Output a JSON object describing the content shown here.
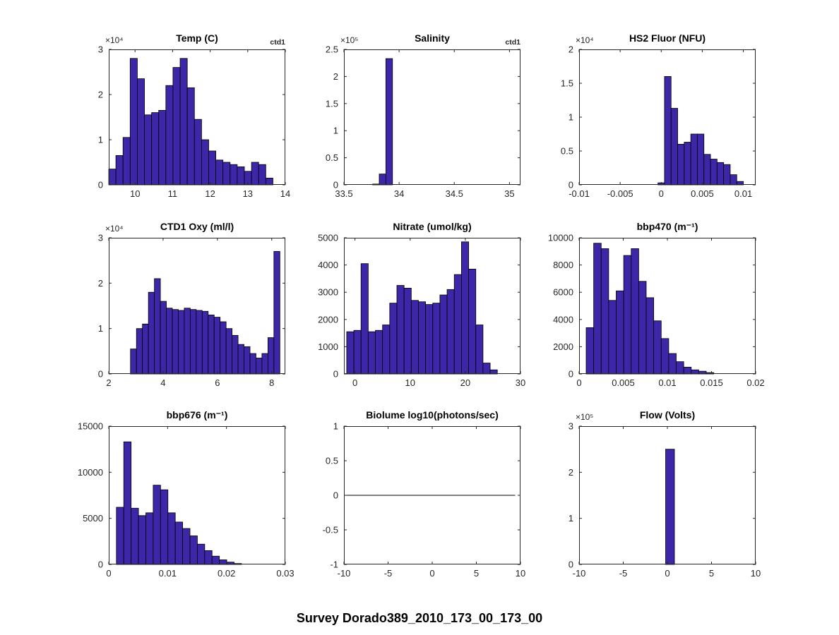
{
  "figure": {
    "title": "Survey Dorado389_2010_173_00_173_00",
    "background": "#ffffff",
    "bar_color": "#3E26A8",
    "bar_edge_color": "#000000",
    "axis_color": "#262626",
    "tick_label_color": "#262626"
  },
  "chart_data": [
    {
      "type": "bar",
      "title": "Temp (C)",
      "corner_label": "ctd1",
      "y_exponent": "×10⁴",
      "xlim": [
        9.3,
        14
      ],
      "ylim": [
        0,
        3
      ],
      "xticks": [
        {
          "v": 10,
          "label": "10"
        },
        {
          "v": 11,
          "label": "11"
        },
        {
          "v": 12,
          "label": "12"
        },
        {
          "v": 13,
          "label": "13"
        },
        {
          "v": 14,
          "label": "14"
        }
      ],
      "yticks": [
        {
          "v": 0,
          "label": "0"
        },
        {
          "v": 1,
          "label": "1"
        },
        {
          "v": 2,
          "label": "2"
        },
        {
          "v": 3,
          "label": "3"
        }
      ],
      "bins": {
        "start": 9.3,
        "width": 0.19,
        "values": [
          0.35,
          0.65,
          1.05,
          2.8,
          2.35,
          1.55,
          1.6,
          1.65,
          2.2,
          2.6,
          2.8,
          2.15,
          1.45,
          1.0,
          0.75,
          0.55,
          0.5,
          0.45,
          0.4,
          0.3,
          0.5,
          0.45,
          0.15
        ]
      }
    },
    {
      "type": "bar",
      "title": "Salinity",
      "corner_label": "ctd1",
      "y_exponent": "×10⁵",
      "xlim": [
        33.5,
        35.1
      ],
      "ylim": [
        0,
        2.5
      ],
      "xticks": [
        {
          "v": 33.5,
          "label": "33.5"
        },
        {
          "v": 34,
          "label": "34"
        },
        {
          "v": 34.5,
          "label": "34.5"
        },
        {
          "v": 35,
          "label": "35"
        }
      ],
      "yticks": [
        {
          "v": 0,
          "label": "0"
        },
        {
          "v": 0.5,
          "label": "0.5"
        },
        {
          "v": 1,
          "label": "1"
        },
        {
          "v": 1.5,
          "label": "1.5"
        },
        {
          "v": 2,
          "label": "2"
        },
        {
          "v": 2.5,
          "label": "2.5"
        }
      ],
      "bins": {
        "start": 33.76,
        "width": 0.06,
        "values": [
          0.015,
          0.2,
          2.33
        ]
      }
    },
    {
      "type": "bar",
      "title": "HS2 Fluor (NFU)",
      "y_exponent": "×10⁴",
      "xlim": [
        -0.01,
        0.0115
      ],
      "ylim": [
        0,
        2
      ],
      "xticks": [
        {
          "v": -0.01,
          "label": "-0.01"
        },
        {
          "v": -0.005,
          "label": "-0.005"
        },
        {
          "v": 0,
          "label": "0"
        },
        {
          "v": 0.005,
          "label": "0.005"
        },
        {
          "v": 0.01,
          "label": "0.01"
        }
      ],
      "yticks": [
        {
          "v": 0,
          "label": "0"
        },
        {
          "v": 0.5,
          "label": "0.5"
        },
        {
          "v": 1,
          "label": "1"
        },
        {
          "v": 1.5,
          "label": "1.5"
        },
        {
          "v": 2,
          "label": "2"
        }
      ],
      "bins": {
        "start": -0.0004,
        "width": 0.0008,
        "values": [
          0.03,
          1.6,
          1.13,
          0.6,
          0.63,
          0.75,
          0.75,
          0.45,
          0.38,
          0.33,
          0.3,
          0.15,
          0.05
        ]
      }
    },
    {
      "type": "bar",
      "title": "CTD1 Oxy (ml/l)",
      "y_exponent": "×10⁴",
      "xlim": [
        2,
        8.5
      ],
      "ylim": [
        0,
        3
      ],
      "xticks": [
        {
          "v": 2,
          "label": "2"
        },
        {
          "v": 4,
          "label": "4"
        },
        {
          "v": 6,
          "label": "6"
        },
        {
          "v": 8,
          "label": "8"
        }
      ],
      "yticks": [
        {
          "v": 0,
          "label": "0"
        },
        {
          "v": 1,
          "label": "1"
        },
        {
          "v": 2,
          "label": "2"
        },
        {
          "v": 3,
          "label": "3"
        }
      ],
      "bins": {
        "start": 2.8,
        "width": 0.22,
        "values": [
          0.55,
          1.0,
          1.1,
          1.8,
          2.1,
          1.6,
          1.45,
          1.42,
          1.4,
          1.45,
          1.42,
          1.4,
          1.38,
          1.3,
          1.25,
          1.15,
          1.0,
          0.85,
          0.65,
          0.6,
          0.45,
          0.35,
          0.45,
          0.8,
          2.7
        ]
      }
    },
    {
      "type": "bar",
      "title": "Nitrate (umol/kg)",
      "xlim": [
        -2,
        30
      ],
      "ylim": [
        0,
        5000
      ],
      "xticks": [
        {
          "v": 0,
          "label": "0"
        },
        {
          "v": 10,
          "label": "10"
        },
        {
          "v": 20,
          "label": "20"
        },
        {
          "v": 30,
          "label": "30"
        }
      ],
      "yticks": [
        {
          "v": 0,
          "label": "0"
        },
        {
          "v": 1000,
          "label": "1000"
        },
        {
          "v": 2000,
          "label": "2000"
        },
        {
          "v": 3000,
          "label": "3000"
        },
        {
          "v": 4000,
          "label": "4000"
        },
        {
          "v": 5000,
          "label": "5000"
        }
      ],
      "bins": {
        "start": -1.5,
        "width": 1.3,
        "values": [
          1550,
          1600,
          4050,
          1550,
          1600,
          1800,
          2600,
          3250,
          3150,
          2700,
          2650,
          2550,
          2600,
          2900,
          3100,
          3650,
          4850,
          3850,
          1800,
          400,
          150
        ]
      }
    },
    {
      "type": "bar",
      "title": "bbp470 (m⁻¹)",
      "xlim": [
        0,
        0.02
      ],
      "ylim": [
        0,
        10000
      ],
      "xticks": [
        {
          "v": 0,
          "label": "0"
        },
        {
          "v": 0.005,
          "label": "0.005"
        },
        {
          "v": 0.01,
          "label": "0.01"
        },
        {
          "v": 0.015,
          "label": "0.015"
        },
        {
          "v": 0.02,
          "label": "0.02"
        }
      ],
      "yticks": [
        {
          "v": 0,
          "label": "0"
        },
        {
          "v": 2000,
          "label": "2000"
        },
        {
          "v": 4000,
          "label": "4000"
        },
        {
          "v": 6000,
          "label": "6000"
        },
        {
          "v": 8000,
          "label": "8000"
        },
        {
          "v": 10000,
          "label": "10000"
        }
      ],
      "bins": {
        "start": 0.0008,
        "width": 0.00085,
        "values": [
          3400,
          9600,
          9200,
          5400,
          6100,
          8700,
          9200,
          6800,
          5600,
          3900,
          2600,
          1500,
          900,
          500,
          300,
          200,
          100
        ]
      }
    },
    {
      "type": "bar",
      "title": "bbp676 (m⁻¹)",
      "xlim": [
        0,
        0.03
      ],
      "ylim": [
        0,
        15000
      ],
      "xticks": [
        {
          "v": 0,
          "label": "0"
        },
        {
          "v": 0.01,
          "label": "0.01"
        },
        {
          "v": 0.02,
          "label": "0.02"
        },
        {
          "v": 0.03,
          "label": "0.03"
        }
      ],
      "yticks": [
        {
          "v": 0,
          "label": "0"
        },
        {
          "v": 5000,
          "label": "5000"
        },
        {
          "v": 10000,
          "label": "10000"
        },
        {
          "v": 15000,
          "label": "15000"
        }
      ],
      "bins": {
        "start": 0.0013,
        "width": 0.00125,
        "values": [
          6200,
          13300,
          6100,
          5300,
          5600,
          8600,
          8100,
          5600,
          4600,
          3900,
          3100,
          2200,
          1500,
          900,
          500,
          250,
          100
        ]
      }
    },
    {
      "type": "line",
      "title": "Biolume log10(photons/sec)",
      "xlim": [
        -10,
        10
      ],
      "ylim": [
        -1,
        1
      ],
      "xticks": [
        {
          "v": -10,
          "label": "-10"
        },
        {
          "v": -5,
          "label": "-5"
        },
        {
          "v": 0,
          "label": "0"
        },
        {
          "v": 5,
          "label": "5"
        },
        {
          "v": 10,
          "label": "10"
        }
      ],
      "yticks": [
        {
          "v": -1,
          "label": "-1"
        },
        {
          "v": -0.5,
          "label": "-0.5"
        },
        {
          "v": 0,
          "label": "0"
        },
        {
          "v": 0.5,
          "label": "0.5"
        },
        {
          "v": 1,
          "label": "1"
        }
      ],
      "line": {
        "x": [
          -10,
          9.4
        ],
        "y": [
          0,
          0
        ]
      }
    },
    {
      "type": "bar",
      "title": "Flow (Volts)",
      "y_exponent": "×10⁵",
      "xlim": [
        -10,
        10
      ],
      "ylim": [
        0,
        3
      ],
      "xticks": [
        {
          "v": -10,
          "label": "-10"
        },
        {
          "v": -5,
          "label": "-5"
        },
        {
          "v": 0,
          "label": "0"
        },
        {
          "v": 5,
          "label": "5"
        },
        {
          "v": 10,
          "label": "10"
        }
      ],
      "yticks": [
        {
          "v": 0,
          "label": "0"
        },
        {
          "v": 1,
          "label": "1"
        },
        {
          "v": 2,
          "label": "2"
        },
        {
          "v": 3,
          "label": "3"
        }
      ],
      "bins": {
        "start": -0.2,
        "width": 1.0,
        "values": [
          2.5
        ]
      }
    }
  ]
}
